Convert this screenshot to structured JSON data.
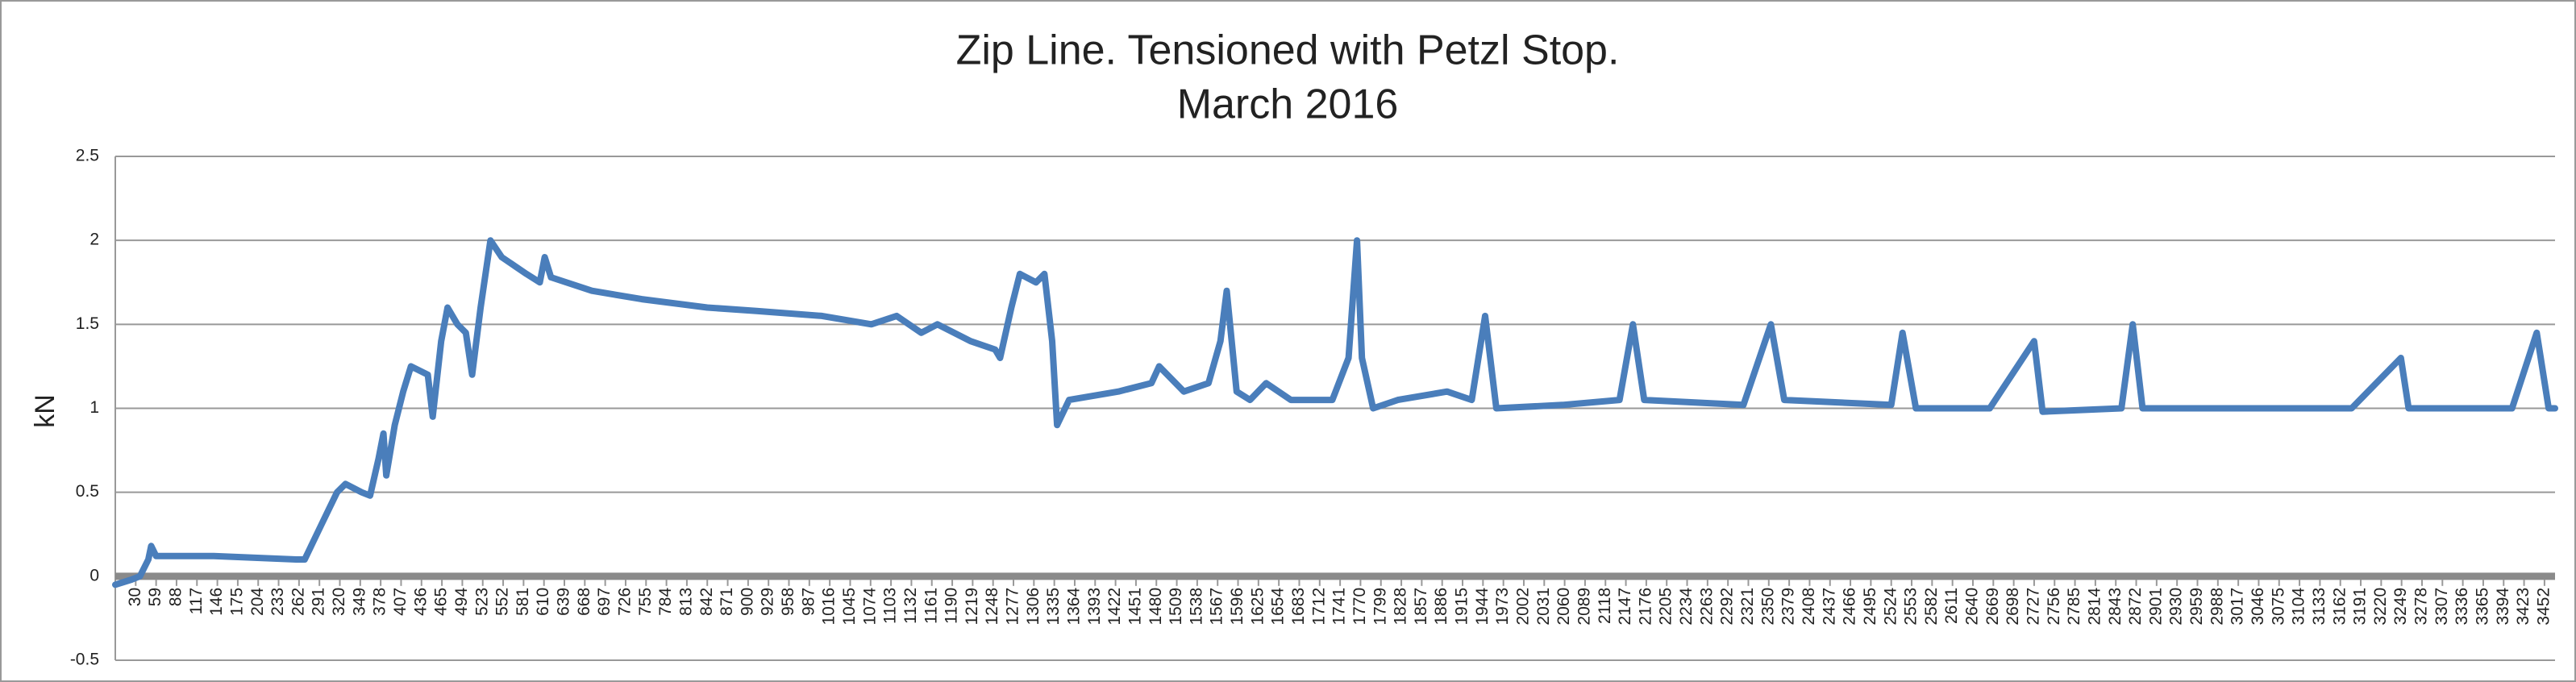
{
  "chart_data": {
    "type": "line",
    "title": "Zip Line. Tensioned with Petzl Stop.",
    "subtitle": "March 2016",
    "y_label": "kN",
    "xlim": [
      1,
      3467
    ],
    "ylim": [
      -0.5,
      2.5
    ],
    "yticks": [
      {
        "value": -0.5,
        "label": "-0.5"
      },
      0,
      {
        "value": 0.5,
        "label": "0.5"
      },
      1,
      {
        "value": 1.5,
        "label": "1.5"
      },
      2,
      {
        "value": 2.5,
        "label": "2.5"
      }
    ],
    "xticks": [
      30,
      59,
      88,
      117,
      146,
      175,
      204,
      233,
      262,
      291,
      320,
      349,
      378,
      407,
      436,
      465,
      494,
      523,
      552,
      581,
      610,
      639,
      668,
      697,
      726,
      755,
      784,
      813,
      842,
      871,
      900,
      929,
      958,
      987,
      1016,
      1045,
      1074,
      1103,
      1132,
      1161,
      1190,
      1219,
      1248,
      1277,
      1306,
      1335,
      1364,
      1393,
      1422,
      1451,
      1480,
      1509,
      1538,
      1567,
      1596,
      1625,
      1654,
      1683,
      1712,
      1741,
      1770,
      1799,
      1828,
      1857,
      1886,
      1915,
      1944,
      1973,
      2002,
      2031,
      2060,
      2089,
      2118,
      2147,
      2176,
      2205,
      2234,
      2263,
      2292,
      2321,
      2350,
      2379,
      2408,
      2437,
      2466,
      2495,
      2524,
      2553,
      2582,
      2611,
      2640,
      2669,
      2698,
      2727,
      2756,
      2785,
      2814,
      2843,
      2872,
      2901,
      2930,
      2959,
      2988,
      3017,
      3046,
      3075,
      3104,
      3133,
      3162,
      3191,
      3220,
      3249,
      3278,
      3307,
      3336,
      3365,
      3394,
      3423,
      3452
    ],
    "grid": true,
    "series": [
      {
        "name": "kN",
        "color": "#4a7ebb",
        "x": [
          1,
          24,
          36,
          48,
          52,
          59,
          141,
          258,
          270,
          293,
          316,
          328,
          351,
          363,
          375,
          382,
          386,
          398,
          410,
          421,
          445,
          452,
          464,
          473,
          487,
          499,
          508,
          520,
          527,
          534,
          550,
          585,
          604,
          611,
          620,
          678,
          749,
          842,
          912,
          1005,
          1075,
          1111,
          1146,
          1169,
          1216,
          1251,
          1258,
          1274,
          1286,
          1309,
          1321,
          1332,
          1339,
          1356,
          1426,
          1473,
          1484,
          1519,
          1554,
          1571,
          1580,
          1594,
          1613,
          1636,
          1671,
          1730,
          1753,
          1765,
          1772,
          1788,
          1823,
          1893,
          1928,
          1947,
          1963,
          2057,
          2138,
          2157,
          2173,
          2314,
          2353,
          2372,
          2524,
          2540,
          2559,
          2664,
          2727,
          2739,
          2851,
          2867,
          2881,
          3178,
          3248,
          3259,
          3406,
          3441,
          3458,
          3467
        ],
        "values": [
          -0.05,
          -0.02,
          0.0,
          0.1,
          0.18,
          0.12,
          0.12,
          0.1,
          0.1,
          0.3,
          0.5,
          0.55,
          0.5,
          0.48,
          0.7,
          0.85,
          0.6,
          0.9,
          1.1,
          1.25,
          1.2,
          0.95,
          1.4,
          1.6,
          1.5,
          1.45,
          1.2,
          1.6,
          1.8,
          2.0,
          1.9,
          1.8,
          1.75,
          1.9,
          1.78,
          1.7,
          1.65,
          1.6,
          1.58,
          1.55,
          1.5,
          1.55,
          1.45,
          1.5,
          1.4,
          1.35,
          1.3,
          1.6,
          1.8,
          1.75,
          1.8,
          1.4,
          0.9,
          1.05,
          1.1,
          1.15,
          1.25,
          1.1,
          1.15,
          1.4,
          1.7,
          1.1,
          1.05,
          1.15,
          1.05,
          1.05,
          1.3,
          2.0,
          1.3,
          1.0,
          1.05,
          1.1,
          1.05,
          1.55,
          1.0,
          1.02,
          1.05,
          1.5,
          1.05,
          1.02,
          1.5,
          1.05,
          1.02,
          1.45,
          1.0,
          1.0,
          1.4,
          0.98,
          1.0,
          1.5,
          1.0,
          1.0,
          1.3,
          1.0,
          1.0,
          1.45,
          1.0,
          1.0
        ]
      }
    ]
  }
}
